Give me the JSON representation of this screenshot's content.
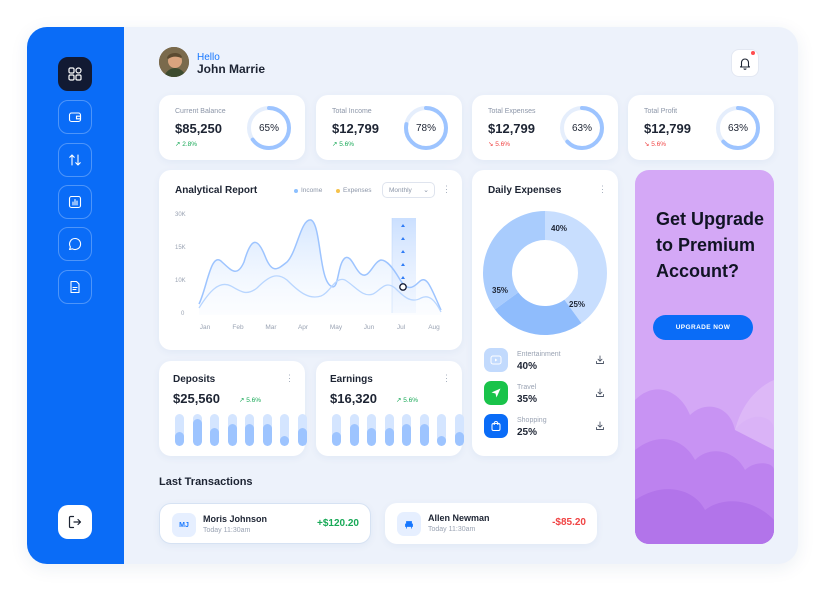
{
  "greeting": {
    "hello": "Hello",
    "name": "John Marrie"
  },
  "stats": [
    {
      "label": "Current Balance",
      "value": "$85,250",
      "change": "2.8%",
      "trend": "up",
      "percent": "65%",
      "progress": 0.65
    },
    {
      "label": "Total Income",
      "value": "$12,799",
      "change": "5.6%",
      "trend": "up",
      "percent": "78%",
      "progress": 0.78
    },
    {
      "label": "Total Expenses",
      "value": "$12,799",
      "change": "5.6%",
      "trend": "down",
      "percent": "63%",
      "progress": 0.63
    },
    {
      "label": "Total Profit",
      "value": "$12,799",
      "change": "5.6%",
      "trend": "down",
      "percent": "63%",
      "progress": 0.63
    }
  ],
  "analytics": {
    "title": "Analytical Report",
    "legend_income": "Income",
    "legend_expenses": "Expenses",
    "period": "Monthly",
    "y_ticks": [
      "30K",
      "15K",
      "10K",
      "0"
    ],
    "x_ticks": [
      "Jan",
      "Feb",
      "Mar",
      "Apr",
      "May",
      "Jun",
      "Jul",
      "Aug"
    ],
    "colors": {
      "income": "#8cc0ff",
      "expenses": "#f5c24b",
      "highlight": "#c5dcff"
    }
  },
  "daily_expenses": {
    "title": "Daily Expenses",
    "slices": [
      {
        "label": "40%",
        "value": 40,
        "color": "#c8defe"
      },
      {
        "label": "25%",
        "value": 25,
        "color": "#8fbcfc"
      },
      {
        "label": "35%",
        "value": 35,
        "color": "#a9ccfd"
      }
    ],
    "items": [
      {
        "name": "Entertainment",
        "value": "40%",
        "icon": "play-icon",
        "color": "#b8d4fc"
      },
      {
        "name": "Travel",
        "value": "35%",
        "icon": "send-icon",
        "color": "#19c34a"
      },
      {
        "name": "Shopping",
        "value": "25%",
        "icon": "bag-icon",
        "color": "#0a6cf7"
      }
    ]
  },
  "deposits": {
    "title": "Deposits",
    "value": "$25,560",
    "change": "5.6%",
    "bars": [
      0.45,
      0.85,
      0.55,
      0.7,
      0.7,
      0.7,
      0.3,
      0.55
    ]
  },
  "earnings": {
    "title": "Earnings",
    "value": "$16,320",
    "change": "5.6%",
    "bars": [
      0.45,
      0.7,
      0.55,
      0.55,
      0.7,
      0.7,
      0.3,
      0.45
    ]
  },
  "promo": {
    "title": "Get Upgrade to Premium Account?",
    "button": "UPGRADE NOW"
  },
  "transactions": {
    "title": "Last Transactions",
    "items": [
      {
        "initials": "MJ",
        "name": "Moris Johnson",
        "time": "Today 11:30am",
        "amount": "+$120.20",
        "type": "credit"
      },
      {
        "initials": "",
        "name": "Allen Newman",
        "time": "Today 11:30am",
        "amount": "-$85.20",
        "type": "debit"
      }
    ]
  }
}
